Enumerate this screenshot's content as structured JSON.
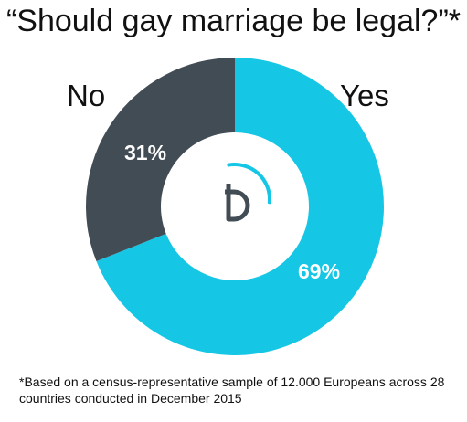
{
  "title": "“Should gay marriage be legal?”*",
  "footnote": "*Based on a census-representative sample of 12.000 Europeans across 28 countries conducted in December 2015",
  "labels": {
    "no": "No",
    "yes": "Yes"
  },
  "chart_data": {
    "type": "pie",
    "title": "“Should gay marriage be legal?”*",
    "categories": [
      "Yes",
      "No"
    ],
    "values": [
      69,
      31
    ],
    "value_labels": [
      "69%",
      "31%"
    ],
    "colors": {
      "Yes": "#16c6e5",
      "No": "#424c55"
    },
    "donut": true
  },
  "logo": {
    "icon": "d-logo-icon",
    "colors": {
      "arc": "#16c6e5",
      "mark": "#424c55"
    }
  }
}
